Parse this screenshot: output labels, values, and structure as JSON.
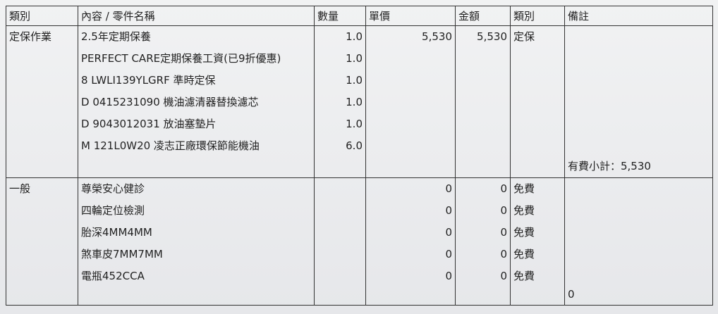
{
  "headers": [
    "類別",
    "內容 / 零件名稱",
    "數量",
    "單價",
    "金額",
    "類別",
    "備註"
  ],
  "sections": [
    {
      "category": "定保作業",
      "items": [
        {
          "name": "2.5年定期保養",
          "qty": "1.0",
          "price": "5,530",
          "amount": "5,530",
          "type": "定保"
        },
        {
          "name": "PERFECT CARE定期保養工資(已9折優惠)",
          "qty": "1.0",
          "price": "",
          "amount": "",
          "type": ""
        },
        {
          "name": "8 LWLI139YLGRF 準時定保",
          "qty": "1.0",
          "price": "",
          "amount": "",
          "type": ""
        },
        {
          "name": "D 0415231090 機油濾清器替換濾芯",
          "qty": "1.0",
          "price": "",
          "amount": "",
          "type": ""
        },
        {
          "name": "D 9043012031 放油塞墊片",
          "qty": "1.0",
          "price": "",
          "amount": "",
          "type": ""
        },
        {
          "name": "M 121L0W20 凌志正廠環保節能機油",
          "qty": "6.0",
          "price": "",
          "amount": "",
          "type": ""
        }
      ],
      "note": "有費小計：5,530"
    },
    {
      "category": "一般",
      "items": [
        {
          "name": "尊榮安心健診",
          "qty": "",
          "price": "0",
          "amount": "0",
          "type": "免費"
        },
        {
          "name": "四輪定位檢測",
          "qty": "",
          "price": "0",
          "amount": "0",
          "type": "免費"
        },
        {
          "name": "胎深4MM4MM",
          "qty": "",
          "price": "0",
          "amount": "0",
          "type": "免費"
        },
        {
          "name": "煞車皮7MM7MM",
          "qty": "",
          "price": "0",
          "amount": "0",
          "type": "免費"
        },
        {
          "name": "電瓶452CCA",
          "qty": "",
          "price": "0",
          "amount": "0",
          "type": "免費"
        }
      ],
      "note": "0"
    }
  ]
}
